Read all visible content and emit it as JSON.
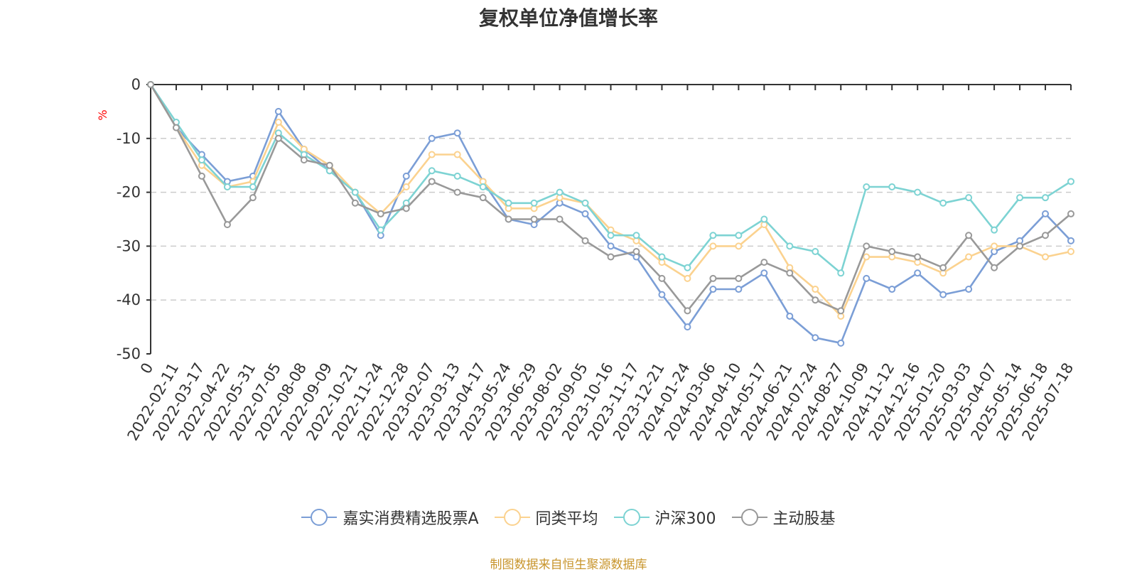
{
  "chart_data": {
    "type": "line",
    "title": "复权单位净值增长率",
    "ylabel": "%",
    "ylim": [
      -50,
      0
    ],
    "yticks": [
      0,
      -10,
      -20,
      -30,
      -40,
      -50
    ],
    "grid": true,
    "legend_position": "bottom",
    "source": "制图数据来自恒生聚源数据库",
    "x_labels": [
      "0",
      "2022-02-11",
      "2022-03-17",
      "2022-04-22",
      "2022-05-31",
      "2022-07-05",
      "2022-08-08",
      "2022-09-09",
      "2022-10-21",
      "2022-11-24",
      "2022-12-28",
      "2023-02-07",
      "2023-03-13",
      "2023-04-17",
      "2023-05-24",
      "2023-06-29",
      "2023-08-02",
      "2023-09-05",
      "2023-10-16",
      "2023-11-17",
      "2023-12-21",
      "2024-01-24",
      "2024-03-06",
      "2024-04-10",
      "2024-05-17",
      "2024-06-21",
      "2024-07-24",
      "2024-08-27",
      "2024-10-09",
      "2024-11-12",
      "2024-12-16",
      "2025-01-20",
      "2025-03-03",
      "2025-04-07",
      "2025-05-14",
      "2025-06-18",
      "2025-07-18"
    ],
    "series": [
      {
        "name": "嘉实消费精选股票A",
        "color": "#7b9ed6",
        "values": [
          0,
          -8,
          -13,
          -18,
          -17,
          -5,
          -12,
          -16,
          -20,
          -28,
          -17,
          -10,
          -9,
          -18,
          -25,
          -26,
          -22,
          -24,
          -30,
          -32,
          -39,
          -45,
          -38,
          -38,
          -35,
          -43,
          -47,
          -48,
          -36,
          -38,
          -35,
          -39,
          -38,
          -31,
          -29,
          -24,
          -29
        ]
      },
      {
        "name": "同类平均",
        "color": "#fbd28f",
        "values": [
          0,
          -8,
          -15,
          -19,
          -18,
          -7,
          -12,
          -15,
          -20,
          -24,
          -19,
          -13,
          -13,
          -18,
          -23,
          -23,
          -21,
          -22,
          -27,
          -29,
          -33,
          -36,
          -30,
          -30,
          -26,
          -34,
          -38,
          -43,
          -32,
          -32,
          -33,
          -35,
          -32,
          -30,
          -30,
          -32,
          -31
        ]
      },
      {
        "name": "沪深300",
        "color": "#7dd3d3",
        "values": [
          0,
          -7,
          -14,
          -19,
          -19,
          -9,
          -13,
          -16,
          -20,
          -27,
          -22,
          -16,
          -17,
          -19,
          -22,
          -22,
          -20,
          -22,
          -28,
          -28,
          -32,
          -34,
          -28,
          -28,
          -25,
          -30,
          -31,
          -35,
          -19,
          -19,
          -20,
          -22,
          -21,
          -27,
          -21,
          -21,
          -18
        ]
      },
      {
        "name": "主动股基",
        "color": "#999999",
        "values": [
          0,
          -8,
          -17,
          -26,
          -21,
          -10,
          -14,
          -15,
          -22,
          -24,
          -23,
          -18,
          -20,
          -21,
          -25,
          -25,
          -25,
          -29,
          -32,
          -31,
          -36,
          -42,
          -36,
          -36,
          -33,
          -35,
          -40,
          -42,
          -30,
          -31,
          -32,
          -34,
          -28,
          -34,
          -30,
          -28,
          -24
        ]
      }
    ]
  }
}
